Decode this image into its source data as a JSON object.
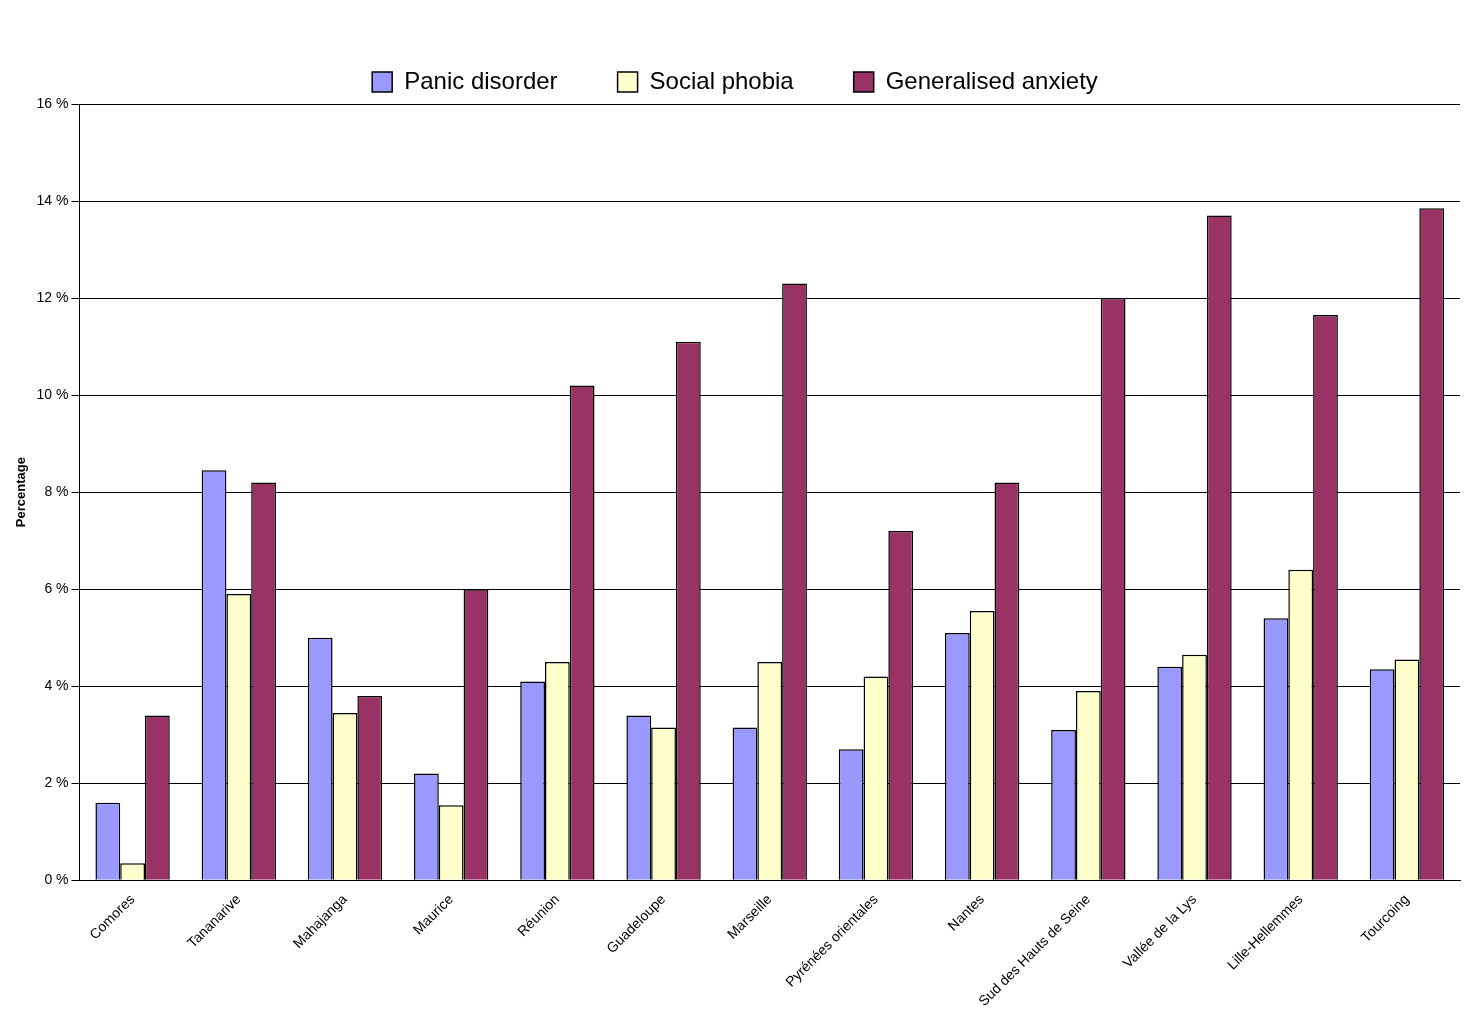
{
  "chart_data": {
    "type": "bar",
    "ylabel": "Percentage",
    "categories": [
      "Comores",
      "Tananarive",
      "Mahajanga",
      "Maurice",
      "Réunion",
      "Guadeloupe",
      "Marseille",
      "Pyrénées orientales",
      "Nantes",
      "Sud des Hauts de Seine",
      "Vallée de la Lys",
      "Lille-Hellemmes",
      "Tourcoing"
    ],
    "series": [
      {
        "name": "Panic disorder",
        "color": "#9999ff",
        "values": [
          1.6,
          8.45,
          5.0,
          2.2,
          4.1,
          3.4,
          3.15,
          2.7,
          5.1,
          3.1,
          4.4,
          5.4,
          4.35
        ]
      },
      {
        "name": "Social phobia",
        "color": "#ffffcc",
        "values": [
          0.35,
          5.9,
          3.45,
          1.55,
          4.5,
          3.15,
          4.5,
          4.2,
          5.55,
          3.9,
          4.65,
          6.4,
          4.55
        ]
      },
      {
        "name": "Generalised anxiety",
        "color": "#993366",
        "values": [
          3.4,
          8.2,
          3.8,
          6.0,
          10.2,
          11.1,
          12.3,
          7.2,
          8.2,
          12.0,
          13.7,
          11.65,
          13.85
        ]
      }
    ],
    "ylim": [
      0,
      16
    ],
    "yticks": [
      {
        "value": 0,
        "label": "0 %"
      },
      {
        "value": 2,
        "label": "2 %"
      },
      {
        "value": 4,
        "label": "4 %"
      },
      {
        "value": 6,
        "label": "6 %"
      },
      {
        "value": 8,
        "label": "8 %"
      },
      {
        "value": 10,
        "label": "10 %"
      },
      {
        "value": 12,
        "label": "12 %"
      },
      {
        "value": 14,
        "label": "14 %"
      },
      {
        "value": 16,
        "label": "16 %"
      }
    ],
    "grid": "y",
    "legend": "top"
  }
}
